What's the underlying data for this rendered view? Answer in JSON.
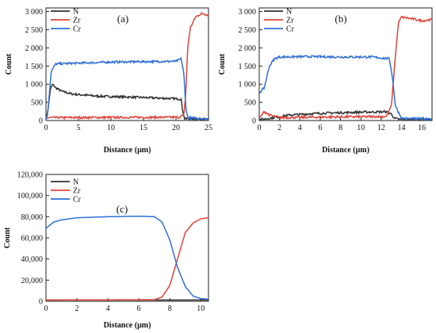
{
  "chart_data": [
    {
      "type": "line",
      "label": "(a)",
      "xlabel": "Distance (μm)",
      "ylabel": "Count",
      "xlim": [
        0,
        25
      ],
      "ylim": [
        0,
        3100
      ],
      "xticks": [
        0,
        5,
        10,
        15,
        20,
        25
      ],
      "xtick_labels": [
        "0",
        "5",
        "10",
        "15",
        "20",
        "25"
      ],
      "yticks": [
        0,
        500,
        1000,
        1500,
        2000,
        2500,
        3000
      ],
      "ytick_labels": [
        "0",
        "500",
        "1 000",
        "1 500",
        "2 000",
        "2 500",
        "3 000"
      ],
      "legend_position": "top-left",
      "noise": 28,
      "series": [
        {
          "name": "N",
          "color": "#333333",
          "points": [
            [
              0,
              0
            ],
            [
              0.3,
              300
            ],
            [
              0.7,
              870
            ],
            [
              1.0,
              1000
            ],
            [
              1.5,
              900
            ],
            [
              2.5,
              800
            ],
            [
              4,
              730
            ],
            [
              8,
              670
            ],
            [
              14,
              640
            ],
            [
              20,
              600
            ],
            [
              20.8,
              590
            ],
            [
              21.0,
              300
            ],
            [
              21.3,
              50
            ],
            [
              25,
              30
            ]
          ]
        },
        {
          "name": "Zr",
          "color": "#e0443a",
          "points": [
            [
              0,
              80
            ],
            [
              20.5,
              90
            ],
            [
              21.2,
              150
            ],
            [
              21.5,
              700
            ],
            [
              21.8,
              2000
            ],
            [
              22.2,
              2550
            ],
            [
              23,
              2850
            ],
            [
              24,
              2950
            ],
            [
              25,
              2900
            ]
          ]
        },
        {
          "name": "Cr",
          "color": "#2f6fd6",
          "points": [
            [
              0,
              0
            ],
            [
              0.3,
              250
            ],
            [
              0.8,
              1350
            ],
            [
              1.5,
              1560
            ],
            [
              5,
              1580
            ],
            [
              10,
              1610
            ],
            [
              15,
              1620
            ],
            [
              20,
              1630
            ],
            [
              20.8,
              1700
            ],
            [
              21.2,
              1300
            ],
            [
              21.5,
              400
            ],
            [
              21.8,
              80
            ],
            [
              25,
              40
            ]
          ]
        }
      ]
    },
    {
      "type": "line",
      "label": "(b)",
      "xlabel": "Distance (μm)",
      "ylabel": "Count",
      "xlim": [
        0,
        17
      ],
      "ylim": [
        0,
        3100
      ],
      "xticks": [
        0,
        2,
        4,
        6,
        8,
        10,
        12,
        14,
        16
      ],
      "xtick_labels": [
        "0",
        "2",
        "4",
        "6",
        "8",
        "10",
        "12",
        "14",
        "16"
      ],
      "yticks": [
        0,
        500,
        1000,
        1500,
        2000,
        2500,
        3000
      ],
      "ytick_labels": [
        "0",
        "500",
        "1 000",
        "1 500",
        "2 000",
        "2 500",
        "3 000"
      ],
      "legend_position": "top-left",
      "noise": 30,
      "series": [
        {
          "name": "N",
          "color": "#333333",
          "points": [
            [
              0,
              20
            ],
            [
              1,
              60
            ],
            [
              3,
              150
            ],
            [
              6,
              200
            ],
            [
              10,
              230
            ],
            [
              12.5,
              240
            ],
            [
              13,
              180
            ],
            [
              13.3,
              60
            ],
            [
              14,
              20
            ],
            [
              17,
              20
            ]
          ]
        },
        {
          "name": "Zr",
          "color": "#e0443a",
          "points": [
            [
              0,
              50
            ],
            [
              0.5,
              250
            ],
            [
              1,
              150
            ],
            [
              2,
              80
            ],
            [
              8,
              100
            ],
            [
              12.5,
              110
            ],
            [
              13,
              400
            ],
            [
              13.4,
              1800
            ],
            [
              13.7,
              2700
            ],
            [
              14,
              2850
            ],
            [
              15,
              2800
            ],
            [
              16,
              2750
            ],
            [
              17,
              2780
            ]
          ]
        },
        {
          "name": "Cr",
          "color": "#2f6fd6",
          "points": [
            [
              0,
              760
            ],
            [
              0.5,
              900
            ],
            [
              1,
              1500
            ],
            [
              1.5,
              1700
            ],
            [
              2,
              1750
            ],
            [
              5,
              1760
            ],
            [
              8,
              1750
            ],
            [
              11,
              1750
            ],
            [
              12.8,
              1700
            ],
            [
              13.1,
              1200
            ],
            [
              13.4,
              400
            ],
            [
              14,
              60
            ],
            [
              15,
              50
            ],
            [
              17,
              50
            ]
          ]
        }
      ]
    },
    {
      "type": "line",
      "label": "(c)",
      "xlabel": "Distance (μm)",
      "ylabel": "Count",
      "xlim": [
        0,
        10.5
      ],
      "ylim": [
        0,
        120000
      ],
      "xticks": [
        0,
        2,
        4,
        6,
        8,
        10
      ],
      "xtick_labels": [
        "0",
        "2",
        "4",
        "6",
        "8",
        "10"
      ],
      "yticks": [
        0,
        20000,
        40000,
        60000,
        80000,
        100000,
        120000
      ],
      "ytick_labels": [
        "0",
        "20,000",
        "40,000",
        "60,000",
        "80,000",
        "100,000",
        "120,000"
      ],
      "legend_position": "top-left",
      "noise": 0,
      "series": [
        {
          "name": "N",
          "color": "#333333",
          "points": [
            [
              0,
              1200
            ],
            [
              10.5,
              1200
            ]
          ]
        },
        {
          "name": "Zr",
          "color": "#e0443a",
          "points": [
            [
              0,
              1200
            ],
            [
              7,
              1500
            ],
            [
              7.5,
              4000
            ],
            [
              8,
              15000
            ],
            [
              8.5,
              40000
            ],
            [
              9,
              65000
            ],
            [
              9.5,
              74000
            ],
            [
              10,
              78000
            ],
            [
              10.5,
              79000
            ]
          ]
        },
        {
          "name": "Cr",
          "color": "#2f6fd6",
          "points": [
            [
              0,
              69000
            ],
            [
              0.5,
              75000
            ],
            [
              1,
              77000
            ],
            [
              2,
              79000
            ],
            [
              4,
              80000
            ],
            [
              6,
              80500
            ],
            [
              7,
              80000
            ],
            [
              7.5,
              75000
            ],
            [
              8,
              58000
            ],
            [
              8.5,
              32000
            ],
            [
              9,
              14000
            ],
            [
              9.5,
              5000
            ],
            [
              10,
              2500
            ],
            [
              10.5,
              2000
            ]
          ]
        }
      ]
    }
  ]
}
